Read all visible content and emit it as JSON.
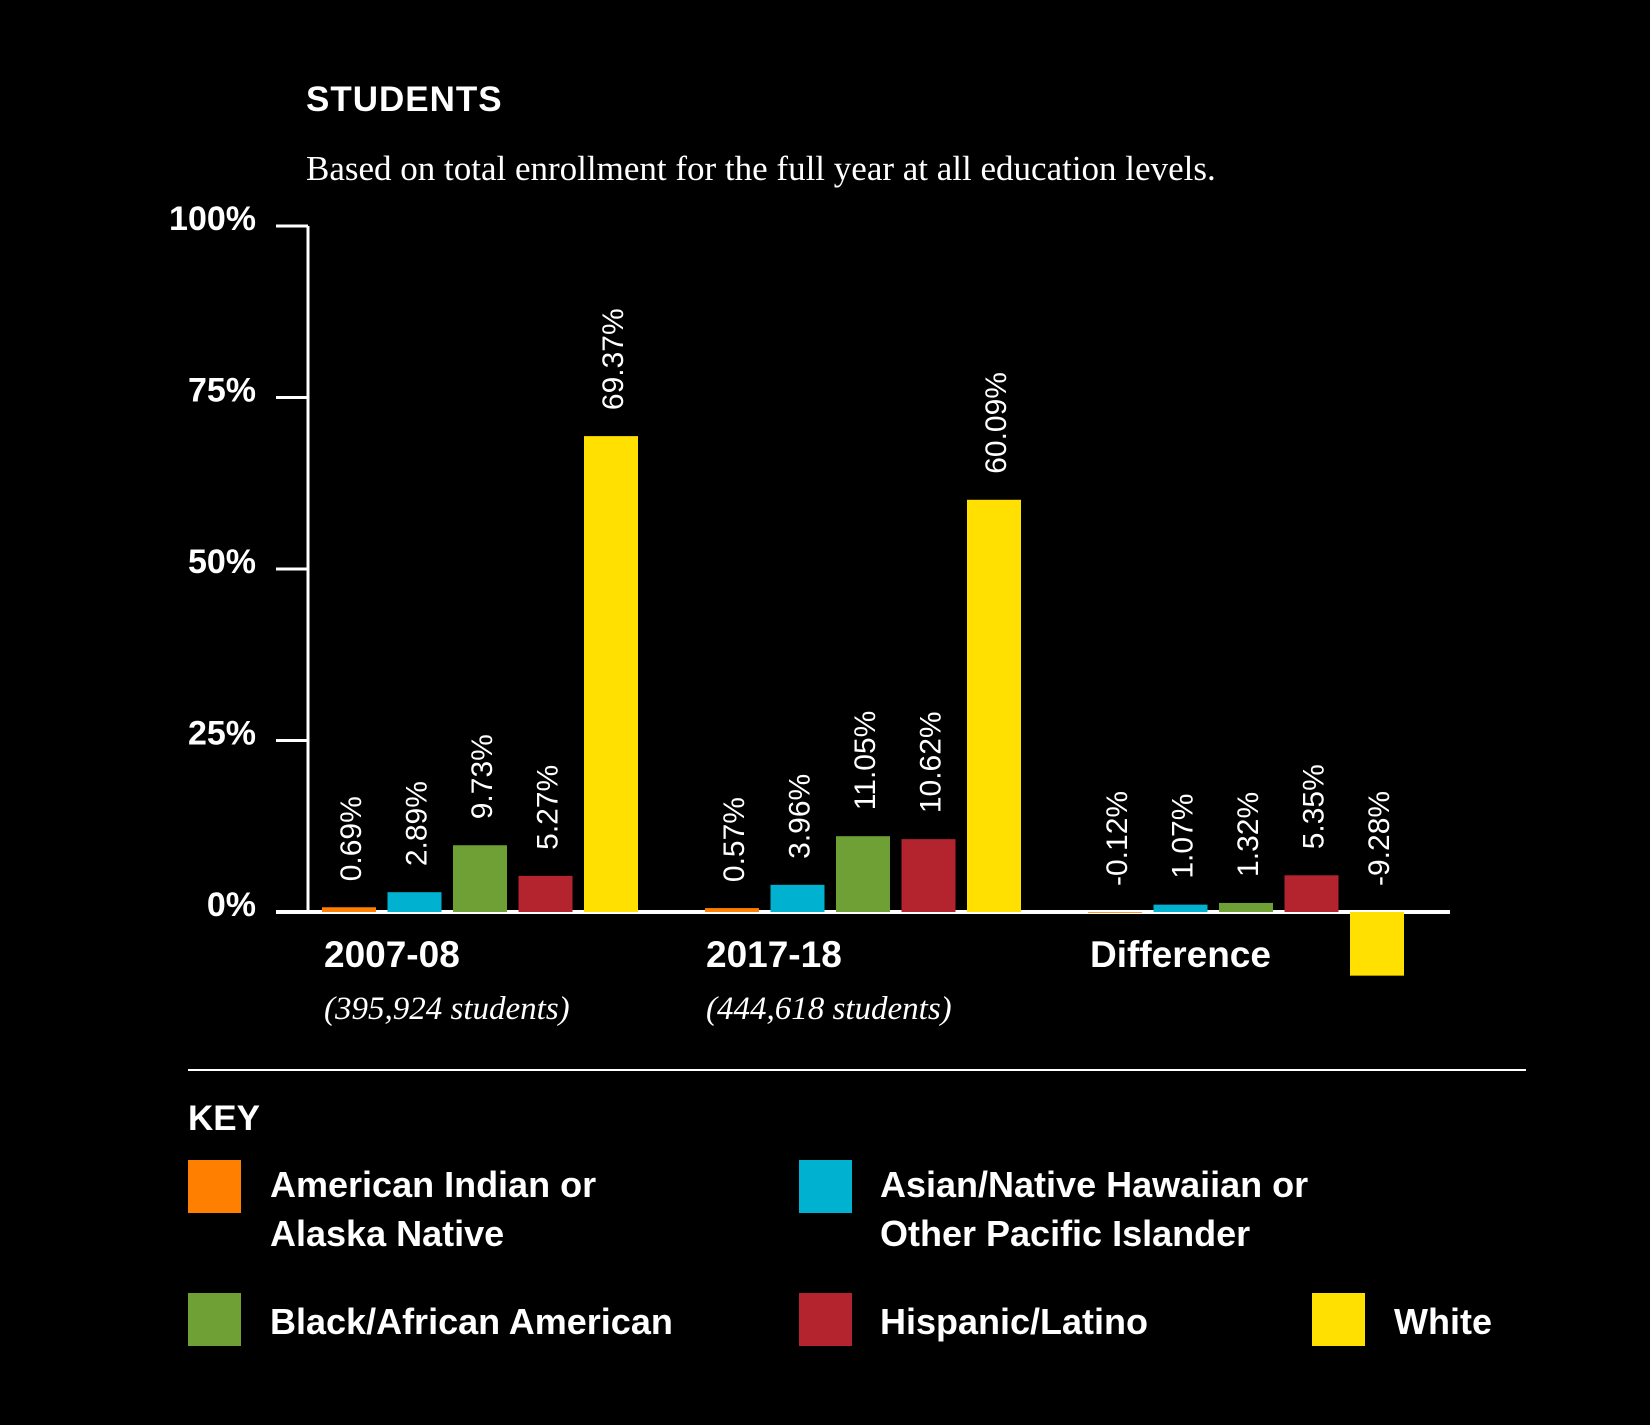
{
  "header": {
    "title": "STUDENTS",
    "subtitle": "Based on total enrollment for the full year at all education levels."
  },
  "colors": {
    "background": "#000000",
    "axis": "#ffffff",
    "american_indian": "#FF7F00",
    "asian": "#00B2D0",
    "black": "#6FA035",
    "hispanic": "#B3242F",
    "white": "#FFE000"
  },
  "chart_data": {
    "type": "bar",
    "ylim": [
      0,
      100
    ],
    "y_ticks": [
      "0%",
      "25%",
      "50%",
      "75%",
      "100%"
    ],
    "grid": false,
    "legend_position": "bottom",
    "categories": [
      "2007-08",
      "2017-18",
      "Difference"
    ],
    "category_sublabels": [
      "(395,924 students)",
      "(444,618 students)",
      ""
    ],
    "series": [
      {
        "name": "American Indian or Alaska Native",
        "color": "#FF7F00",
        "values": [
          0.69,
          0.57,
          -0.12
        ],
        "labels": [
          "0.69%",
          "0.57%",
          "-0.12%"
        ]
      },
      {
        "name": "Asian/Native Hawaiian or Other Pacific Islander",
        "color": "#00B2D0",
        "values": [
          2.89,
          3.96,
          1.07
        ],
        "labels": [
          "2.89%",
          "3.96%",
          "1.07%"
        ]
      },
      {
        "name": "Black/African American",
        "color": "#6FA035",
        "values": [
          9.73,
          11.05,
          1.32
        ],
        "labels": [
          "9.73%",
          "11.05%",
          "1.32%"
        ]
      },
      {
        "name": "Hispanic/Latino",
        "color": "#B3242F",
        "values": [
          5.27,
          10.62,
          5.35
        ],
        "labels": [
          "5.27%",
          "10.62%",
          "5.35%"
        ]
      },
      {
        "name": "White",
        "color": "#FFE000",
        "values": [
          69.37,
          60.09,
          -9.28
        ],
        "labels": [
          "69.37%",
          "60.09%",
          "-9.28%"
        ]
      }
    ]
  },
  "legend": {
    "title": "KEY",
    "items": [
      {
        "line1": "American Indian or",
        "line2": "Alaska Native",
        "color": "#FF7F00"
      },
      {
        "line1": "Asian/Native Hawaiian or",
        "line2": "Other Pacific Islander",
        "color": "#00B2D0"
      },
      {
        "line1": "Black/African American",
        "line2": "",
        "color": "#6FA035"
      },
      {
        "line1": "Hispanic/Latino",
        "line2": "",
        "color": "#B3242F"
      },
      {
        "line1": "White",
        "line2": "",
        "color": "#FFE000"
      }
    ]
  }
}
